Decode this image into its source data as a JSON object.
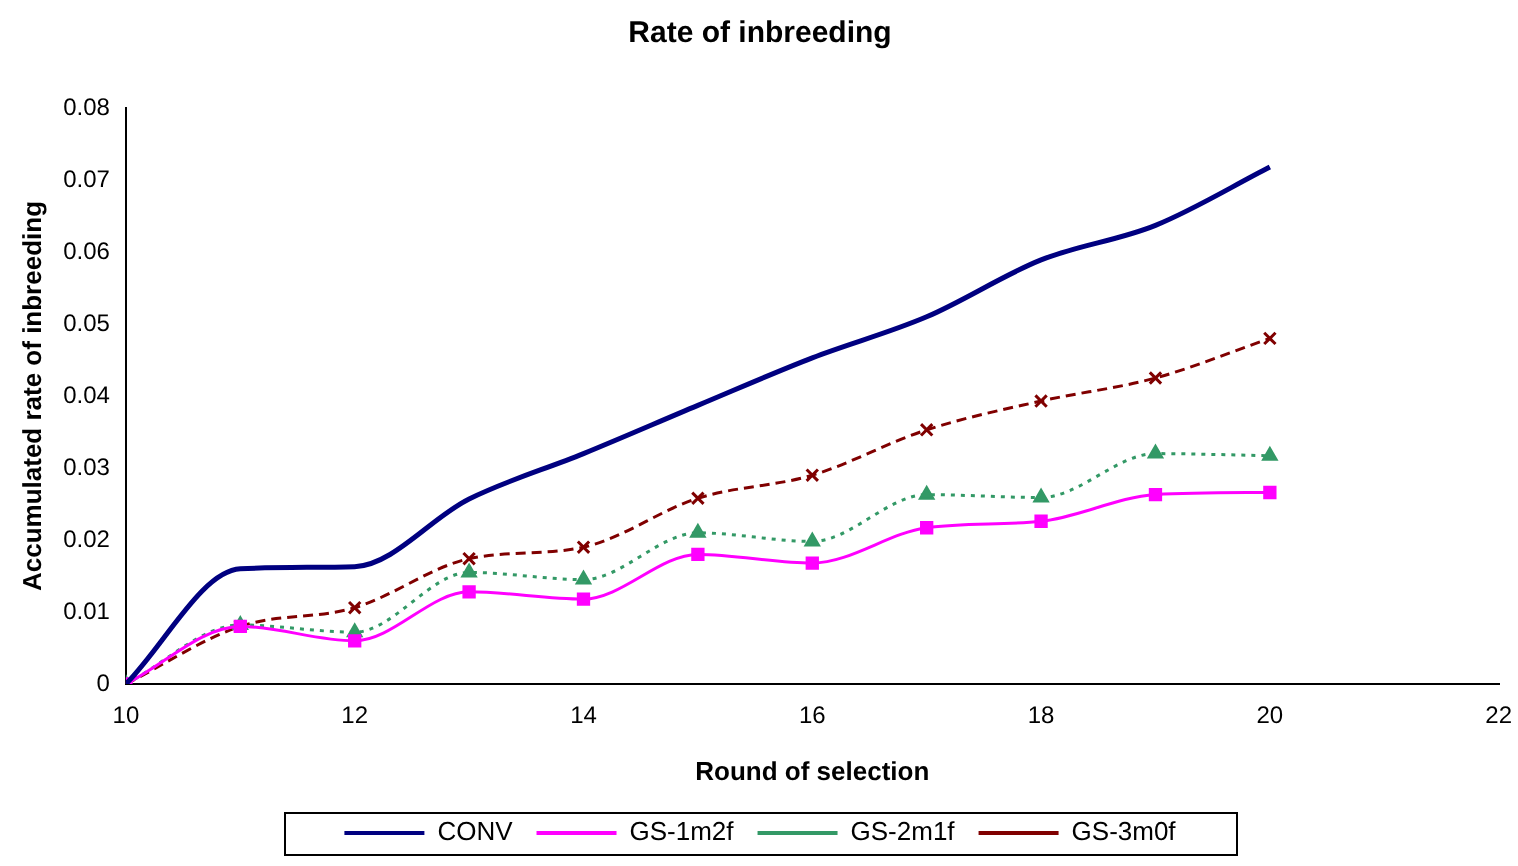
{
  "chart_data": {
    "type": "line",
    "title": "Rate of inbreeding",
    "xlabel": "Round of selection",
    "ylabel": "Accumulated rate of inbreeding",
    "x": [
      10,
      11,
      12,
      13,
      14,
      15,
      16,
      17,
      18,
      19,
      20
    ],
    "xlim": [
      10,
      22
    ],
    "xticks": [
      10,
      12,
      14,
      16,
      18,
      20,
      22
    ],
    "ylim": [
      0,
      0.08
    ],
    "yticks": [
      0,
      0.01,
      0.02,
      0.03,
      0.04,
      0.05,
      0.06,
      0.07,
      0.08
    ],
    "grid": false,
    "legend": "bottom",
    "series": [
      {
        "name": "CONV",
        "color": "#000080",
        "marker": "none",
        "line_style": "solid",
        "values": [
          0,
          0.016,
          0.0163,
          0.0257,
          0.032,
          0.0387,
          0.0453,
          0.051,
          0.0589,
          0.0637,
          0.0718
        ]
      },
      {
        "name": "GS-1m2f",
        "color": "#ff00ff",
        "marker": "square",
        "line_style": "solid",
        "values": [
          0,
          0.008,
          0.006,
          0.0128,
          0.0118,
          0.018,
          0.0168,
          0.0217,
          0.0226,
          0.0263,
          0.0266
        ]
      },
      {
        "name": "GS-2m1f",
        "color": "#339966",
        "marker": "triangle",
        "line_style": "dotted",
        "values": [
          0,
          0.0082,
          0.0072,
          0.0155,
          0.0145,
          0.021,
          0.0198,
          0.0263,
          0.0259,
          0.032,
          0.0317
        ]
      },
      {
        "name": "GS-3m0f",
        "color": "#800000",
        "marker": "cross",
        "line_style": "dashed",
        "values": [
          0,
          0.008,
          0.0106,
          0.0174,
          0.019,
          0.0258,
          0.029,
          0.0353,
          0.0393,
          0.0425,
          0.048
        ]
      }
    ]
  }
}
